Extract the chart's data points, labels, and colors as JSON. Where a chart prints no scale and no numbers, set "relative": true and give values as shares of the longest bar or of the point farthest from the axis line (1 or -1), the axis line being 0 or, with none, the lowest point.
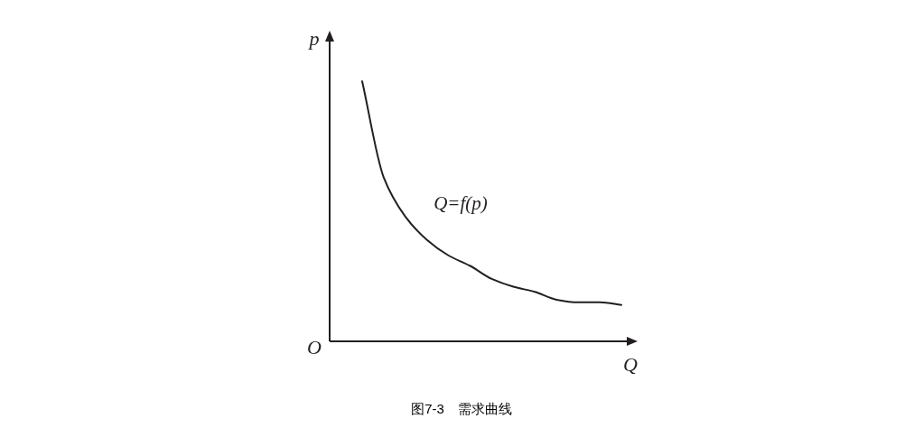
{
  "chart_data": {
    "type": "line",
    "relative": true,
    "title": "图7-3　需求曲线",
    "xlabel": "Q",
    "ylabel": "p",
    "annotations": [
      "O",
      "Q=f(p)"
    ],
    "categories": [
      null,
      null,
      null,
      null,
      null,
      null,
      null,
      null,
      null,
      null,
      null,
      null,
      null
    ],
    "series": [
      {
        "color": "#231f20",
        "values": [
          1,
          0.63,
          0.48,
          0.39,
          0.33,
          0.29,
          0.24,
          0.21,
          0.19,
          0.16,
          0.15,
          0.15,
          0.14
        ]
      }
    ]
  }
}
